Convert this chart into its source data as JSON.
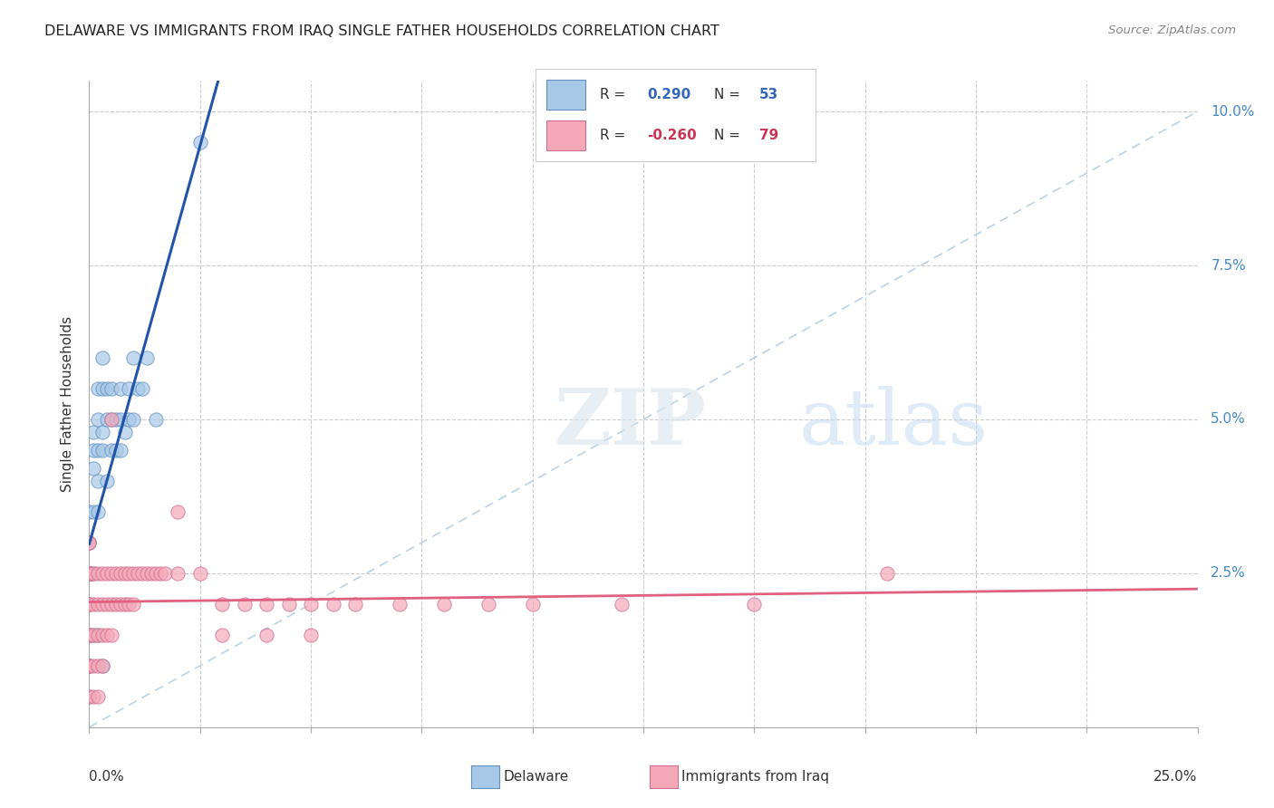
{
  "title": "DELAWARE VS IMMIGRANTS FROM IRAQ SINGLE FATHER HOUSEHOLDS CORRELATION CHART",
  "source": "Source: ZipAtlas.com",
  "ylabel": "Single Father Households",
  "xlim": [
    0.0,
    25.0
  ],
  "ylim": [
    0.0,
    10.5
  ],
  "yticks": [
    0.0,
    2.5,
    5.0,
    7.5,
    10.0
  ],
  "ytick_labels": [
    "",
    "2.5%",
    "5.0%",
    "7.5%",
    "10.0%"
  ],
  "xticks": [
    0.0,
    2.5,
    5.0,
    7.5,
    10.0,
    12.5,
    15.0,
    17.5,
    20.0,
    22.5,
    25.0
  ],
  "delaware_color": "#a8c8e8",
  "iraq_color": "#f4a8b8",
  "delaware_line_color": "#2255aa",
  "iraq_line_color": "#e06080",
  "diag_line_color": "#aac8e0",
  "delaware_scatter": [
    [
      0.0,
      2.5
    ],
    [
      0.0,
      2.5
    ],
    [
      0.0,
      2.5
    ],
    [
      0.0,
      3.0
    ],
    [
      0.0,
      2.5
    ],
    [
      0.0,
      2.5
    ],
    [
      0.0,
      2.0
    ],
    [
      0.0,
      2.5
    ],
    [
      0.0,
      3.0
    ],
    [
      0.0,
      2.5
    ],
    [
      0.0,
      2.5
    ],
    [
      0.0,
      3.5
    ],
    [
      0.1,
      2.5
    ],
    [
      0.1,
      3.5
    ],
    [
      0.1,
      4.5
    ],
    [
      0.1,
      4.8
    ],
    [
      0.1,
      4.2
    ],
    [
      0.2,
      4.5
    ],
    [
      0.2,
      4.0
    ],
    [
      0.2,
      3.5
    ],
    [
      0.2,
      5.0
    ],
    [
      0.2,
      5.5
    ],
    [
      0.3,
      4.5
    ],
    [
      0.3,
      5.5
    ],
    [
      0.3,
      6.0
    ],
    [
      0.3,
      4.8
    ],
    [
      0.4,
      5.0
    ],
    [
      0.4,
      5.5
    ],
    [
      0.4,
      4.0
    ],
    [
      0.5,
      4.5
    ],
    [
      0.5,
      5.0
    ],
    [
      0.5,
      5.5
    ],
    [
      0.6,
      4.5
    ],
    [
      0.6,
      5.0
    ],
    [
      0.7,
      5.0
    ],
    [
      0.7,
      5.5
    ],
    [
      0.7,
      4.5
    ],
    [
      0.8,
      4.8
    ],
    [
      0.9,
      5.0
    ],
    [
      0.9,
      5.5
    ],
    [
      1.0,
      5.0
    ],
    [
      1.0,
      6.0
    ],
    [
      1.1,
      5.5
    ],
    [
      1.2,
      5.5
    ],
    [
      1.3,
      6.0
    ],
    [
      1.5,
      5.0
    ],
    [
      0.0,
      1.5
    ],
    [
      0.0,
      1.0
    ],
    [
      0.0,
      0.5
    ],
    [
      0.1,
      1.5
    ],
    [
      0.2,
      1.5
    ],
    [
      0.3,
      1.0
    ],
    [
      2.5,
      9.5
    ]
  ],
  "iraq_scatter": [
    [
      0.0,
      2.5
    ],
    [
      0.0,
      2.5
    ],
    [
      0.0,
      2.5
    ],
    [
      0.0,
      2.5
    ],
    [
      0.0,
      2.5
    ],
    [
      0.0,
      2.5
    ],
    [
      0.0,
      3.0
    ],
    [
      0.0,
      3.0
    ],
    [
      0.0,
      2.0
    ],
    [
      0.0,
      2.5
    ],
    [
      0.0,
      2.5
    ],
    [
      0.0,
      2.5
    ],
    [
      0.0,
      2.0
    ],
    [
      0.0,
      1.5
    ],
    [
      0.0,
      1.5
    ],
    [
      0.0,
      1.5
    ],
    [
      0.0,
      1.0
    ],
    [
      0.0,
      1.0
    ],
    [
      0.0,
      1.0
    ],
    [
      0.0,
      1.0
    ],
    [
      0.0,
      0.5
    ],
    [
      0.1,
      2.5
    ],
    [
      0.1,
      2.0
    ],
    [
      0.1,
      1.5
    ],
    [
      0.1,
      1.0
    ],
    [
      0.1,
      0.5
    ],
    [
      0.2,
      2.5
    ],
    [
      0.2,
      2.0
    ],
    [
      0.2,
      1.5
    ],
    [
      0.2,
      1.0
    ],
    [
      0.2,
      0.5
    ],
    [
      0.3,
      2.5
    ],
    [
      0.3,
      2.0
    ],
    [
      0.3,
      1.5
    ],
    [
      0.3,
      1.0
    ],
    [
      0.4,
      2.5
    ],
    [
      0.4,
      2.0
    ],
    [
      0.4,
      1.5
    ],
    [
      0.5,
      2.5
    ],
    [
      0.5,
      2.0
    ],
    [
      0.5,
      1.5
    ],
    [
      0.6,
      2.5
    ],
    [
      0.6,
      2.0
    ],
    [
      0.7,
      2.5
    ],
    [
      0.7,
      2.0
    ],
    [
      0.8,
      2.5
    ],
    [
      0.8,
      2.0
    ],
    [
      0.9,
      2.5
    ],
    [
      0.9,
      2.0
    ],
    [
      1.0,
      2.5
    ],
    [
      1.0,
      2.0
    ],
    [
      1.1,
      2.5
    ],
    [
      1.2,
      2.5
    ],
    [
      1.3,
      2.5
    ],
    [
      1.4,
      2.5
    ],
    [
      1.5,
      2.5
    ],
    [
      1.6,
      2.5
    ],
    [
      1.7,
      2.5
    ],
    [
      2.0,
      2.5
    ],
    [
      2.5,
      2.5
    ],
    [
      3.0,
      2.0
    ],
    [
      3.5,
      2.0
    ],
    [
      4.0,
      2.0
    ],
    [
      4.5,
      2.0
    ],
    [
      5.0,
      2.0
    ],
    [
      5.5,
      2.0
    ],
    [
      6.0,
      2.0
    ],
    [
      7.0,
      2.0
    ],
    [
      8.0,
      2.0
    ],
    [
      9.0,
      2.0
    ],
    [
      10.0,
      2.0
    ],
    [
      12.0,
      2.0
    ],
    [
      15.0,
      2.0
    ],
    [
      18.0,
      2.5
    ],
    [
      0.5,
      5.0
    ],
    [
      2.0,
      3.5
    ],
    [
      3.0,
      1.5
    ],
    [
      4.0,
      1.5
    ],
    [
      5.0,
      1.5
    ]
  ],
  "delaware_trend": [
    0.0,
    2.3,
    5.0,
    5.2
  ],
  "iraq_trend": [
    0.0,
    2.8,
    25.0,
    1.5
  ],
  "watermark_zip": "ZIP",
  "watermark_atlas": "atlas",
  "background_color": "#ffffff",
  "grid_color": "#cccccc"
}
